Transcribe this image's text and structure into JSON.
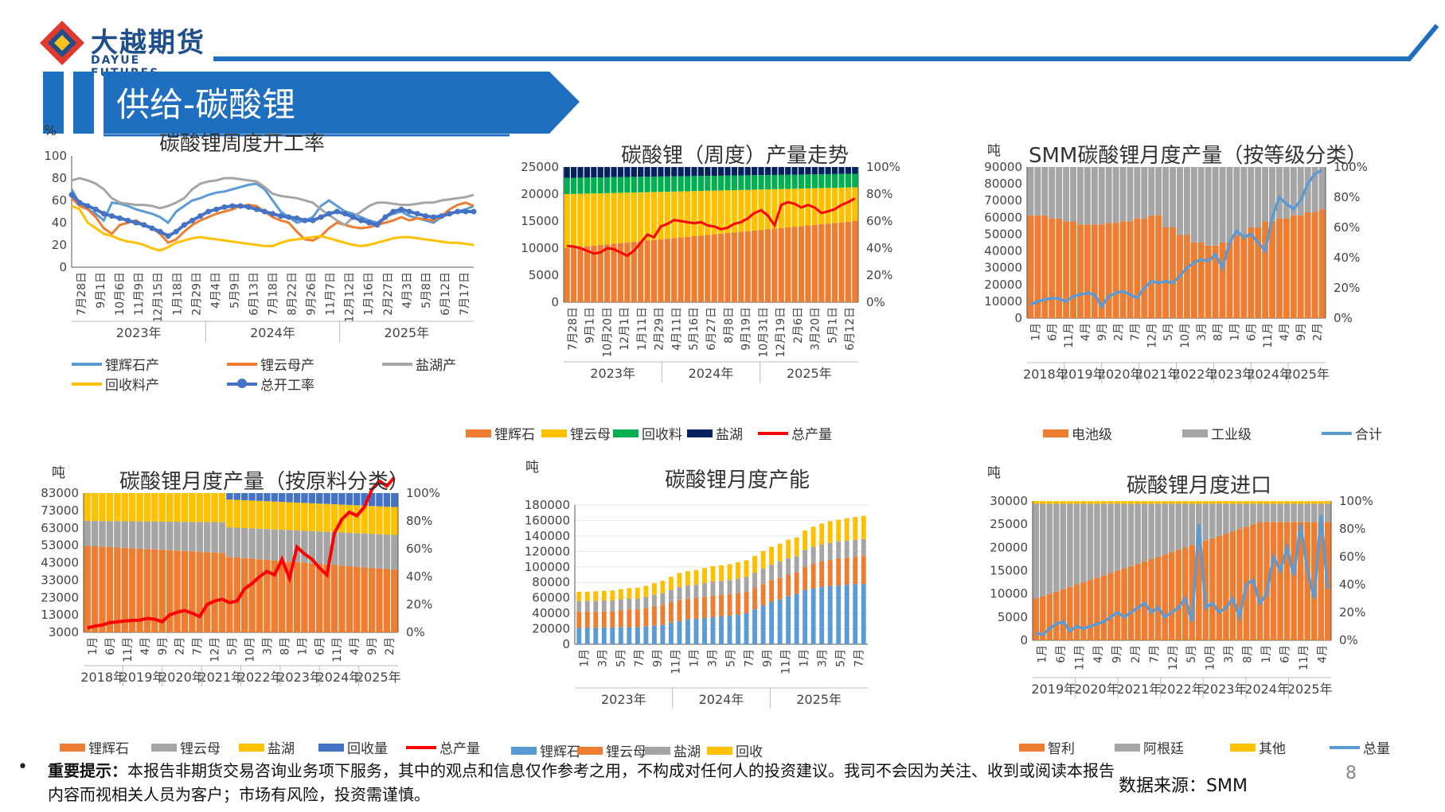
{
  "header": {
    "logo_cn": "大越期货",
    "logo_en": "DAYUE FUTURES",
    "section_title": "供给-碳酸锂",
    "brand_color": "#1f6fc0"
  },
  "footer": {
    "notice_label": "重要提示：",
    "notice_text": "本报告非期货交易咨询业务项下服务，其中的观点和信息仅作参考之用，不构成对任何人的投资建议。我司不会因为关注、收到或阅读本报告内容而视相关人员为客户；市场有风险，投资需谨慎。",
    "source": "数据来源：SMM",
    "page_number": "8"
  },
  "chart_data": [
    {
      "id": "c1",
      "type": "line",
      "title": "碳酸锂周度开工率",
      "unit": "%",
      "ylim": [
        0,
        100
      ],
      "yticks": [
        "0",
        "20",
        "40",
        "60",
        "80",
        "100"
      ],
      "tick_labels": [
        "7月28日",
        "9月1日",
        "10月6日",
        "11月9日",
        "12月15日",
        "1月18日",
        "2月29日",
        "4月4日",
        "5月9日",
        "6月13日",
        "7月18日",
        "8月22日",
        "9月26日",
        "11月7日",
        "12月12日",
        "1月16日",
        "2月27日",
        "4月3日",
        "5月8日",
        "6月12日",
        "7月17日"
      ],
      "year_labels": [
        "2023年",
        "2024年",
        "2025年"
      ],
      "series": [
        {
          "name": "锂辉石产",
          "color": "#5b9bd5",
          "values": [
            70,
            57,
            52,
            48,
            42,
            58,
            57,
            55,
            52,
            50,
            48,
            45,
            40,
            50,
            55,
            60,
            62,
            65,
            67,
            68,
            70,
            72,
            74,
            75,
            70,
            60,
            50,
            45,
            40,
            42,
            45,
            55,
            60,
            55,
            50,
            48,
            45,
            42,
            40,
            45,
            48,
            50,
            46,
            44,
            42,
            40,
            45,
            48,
            50,
            52,
            55
          ]
        },
        {
          "name": "锂云母产",
          "color": "#ed7d31",
          "values": [
            62,
            55,
            52,
            45,
            35,
            30,
            38,
            40,
            42,
            38,
            35,
            30,
            22,
            25,
            32,
            38,
            42,
            45,
            48,
            50,
            52,
            55,
            56,
            55,
            50,
            45,
            42,
            40,
            32,
            25,
            24,
            28,
            35,
            40,
            38,
            36,
            35,
            36,
            38,
            40,
            42,
            45,
            42,
            44,
            43,
            42,
            46,
            52,
            56,
            58,
            55
          ]
        },
        {
          "name": "盐湖产",
          "color": "#a5a5a5",
          "values": [
            78,
            80,
            78,
            75,
            70,
            62,
            58,
            57,
            56,
            56,
            55,
            53,
            55,
            58,
            62,
            70,
            75,
            77,
            78,
            80,
            80,
            79,
            78,
            77,
            72,
            66,
            64,
            63,
            62,
            60,
            58,
            52,
            47,
            42,
            38,
            45,
            50,
            55,
            58,
            58,
            57,
            56,
            56,
            57,
            58,
            58,
            60,
            61,
            62,
            63,
            65
          ]
        },
        {
          "name": "回收料产",
          "color": "#ffc000",
          "values": [
            55,
            52,
            40,
            35,
            30,
            28,
            25,
            23,
            22,
            20,
            17,
            15,
            18,
            22,
            24,
            26,
            27,
            26,
            25,
            24,
            23,
            22,
            21,
            20,
            19,
            19,
            22,
            24,
            25,
            26,
            27,
            28,
            26,
            24,
            22,
            20,
            19,
            20,
            22,
            24,
            26,
            27,
            27,
            26,
            25,
            24,
            23,
            22,
            22,
            21,
            20
          ]
        },
        {
          "name": "总开工率",
          "color": "#4472c4",
          "marker": true,
          "values": [
            65,
            58,
            55,
            52,
            48,
            46,
            44,
            42,
            40,
            38,
            35,
            32,
            28,
            32,
            38,
            42,
            46,
            50,
            52,
            54,
            55,
            55,
            54,
            52,
            50,
            48,
            46,
            45,
            44,
            42,
            42,
            45,
            48,
            50,
            48,
            45,
            42,
            40,
            38,
            45,
            50,
            52,
            50,
            48,
            46,
            45,
            46,
            48,
            50,
            50,
            50
          ]
        }
      ]
    },
    {
      "id": "c2",
      "type": "bar",
      "stacked": "percent",
      "title": "碳酸锂（周度）产量走势",
      "ylim": [
        0,
        25000
      ],
      "yticks": [
        "0",
        "5000",
        "10000",
        "15000",
        "20000",
        "25000"
      ],
      "y2ticks": [
        "0%",
        "20%",
        "40%",
        "60%",
        "80%",
        "100%"
      ],
      "tick_labels": [
        "7月28日",
        "9月1日",
        "10月20日",
        "12月1日",
        "1月11日",
        "2月29日",
        "4月11日",
        "5月16日",
        "6月27日",
        "8月8日",
        "9月19日",
        "10月31日",
        "12月19日",
        "2月6日",
        "3月20日",
        "5月1日",
        "6月12日"
      ],
      "year_labels": [
        "2023年",
        "2024年",
        "2025年"
      ],
      "series_names": [
        "锂辉石",
        "锂云母",
        "回收料",
        "盐湖",
        "总产量"
      ],
      "colors": [
        "#ed7d31",
        "#ffc000",
        "#00b050",
        "#002060",
        "#ff0000"
      ],
      "share_start": [
        0.4,
        0.4,
        0.12,
        0.08
      ],
      "share_end": [
        0.6,
        0.25,
        0.1,
        0.05
      ],
      "total": [
        10400,
        10300,
        10000,
        9500,
        9000,
        9200,
        10000,
        9800,
        9200,
        8600,
        9500,
        11000,
        12500,
        12000,
        14000,
        14500,
        15200,
        15000,
        14800,
        14600,
        14800,
        14200,
        14000,
        13500,
        13800,
        14500,
        14800,
        15500,
        16500,
        17000,
        16000,
        14200,
        18000,
        18500,
        18200,
        17500,
        18000,
        17500,
        16500,
        16800,
        17200,
        18000,
        18500,
        19200
      ]
    },
    {
      "id": "c3",
      "type": "bar",
      "stacked": "percent",
      "title": "SMM碳酸锂月度产量（按等级分类）",
      "unit": "吨",
      "ylim": [
        0,
        90000
      ],
      "yticks": [
        "0",
        "10000",
        "20000",
        "30000",
        "40000",
        "50000",
        "60000",
        "70000",
        "80000",
        "90000"
      ],
      "y2ticks": [
        "0%",
        "20%",
        "40%",
        "60%",
        "80%",
        "100%"
      ],
      "tick_labels": [
        "1月",
        "6月",
        "11月",
        "4月",
        "9月",
        "2月",
        "7月",
        "12月",
        "5月",
        "10月",
        "3月",
        "8月",
        "1月",
        "6月",
        "11月",
        "4月",
        "9月",
        "2月"
      ],
      "year_labels": [
        "2018年",
        "2019年",
        "2020年",
        "2021年",
        "2022年",
        "2023年",
        "2024年",
        "2025年"
      ],
      "series_names": [
        "电池级",
        "工业级",
        "合计"
      ],
      "colors": [
        "#ed7d31",
        "#a5a5a5",
        "#5b9bd5"
      ],
      "battery_share": [
        0.68,
        0.66,
        0.64,
        0.62,
        0.62,
        0.63,
        0.64,
        0.66,
        0.68,
        0.6,
        0.55,
        0.5,
        0.48,
        0.5,
        0.55,
        0.6,
        0.64,
        0.66,
        0.68,
        0.7,
        0.72
      ],
      "total": [
        8000,
        10000,
        11000,
        12000,
        11500,
        10000,
        13000,
        14000,
        15000,
        14000,
        7000,
        13000,
        15000,
        16000,
        14000,
        12000,
        18000,
        22000,
        21000,
        22000,
        21000,
        25000,
        30000,
        33000,
        35000,
        34000,
        38000,
        30000,
        45000,
        52000,
        48000,
        50000,
        45000,
        40000,
        60000,
        72000,
        68000,
        65000,
        70000,
        80000,
        86000,
        88000
      ]
    },
    {
      "id": "c4",
      "type": "bar",
      "stacked": "percent",
      "title": "碳酸锂月度产量（按原料分类）",
      "unit": "吨",
      "ylim": [
        3000,
        83000
      ],
      "yticks": [
        "3000",
        "13000",
        "23000",
        "33000",
        "43000",
        "53000",
        "63000",
        "73000",
        "83000"
      ],
      "y2ticks": [
        "0%",
        "20%",
        "40%",
        "60%",
        "80%",
        "100%"
      ],
      "tick_labels": [
        "1月",
        "6月",
        "11月",
        "4月",
        "9月",
        "2月",
        "7月",
        "12月",
        "5月",
        "10月",
        "3月",
        "8月",
        "1月",
        "6月",
        "11月",
        "4月",
        "9月",
        "2月"
      ],
      "year_labels": [
        "2018年",
        "2019年",
        "2020年",
        "2021年",
        "2022年",
        "2023年",
        "2024年",
        "2025年"
      ],
      "series_names": [
        "锂辉石",
        "锂云母",
        "盐湖",
        "回收量",
        "总产量"
      ],
      "colors": [
        "#ed7d31",
        "#a5a5a5",
        "#ffc000",
        "#4472c4",
        "#ff0000"
      ],
      "total": [
        5500,
        6500,
        7200,
        8500,
        9000,
        9500,
        9800,
        10000,
        11000,
        10500,
        9000,
        13000,
        14500,
        15500,
        14000,
        12000,
        19000,
        21000,
        22000,
        20000,
        21000,
        28000,
        31000,
        35000,
        38000,
        36000,
        45000,
        34000,
        52000,
        48000,
        45000,
        40000,
        36000,
        60000,
        68000,
        72000,
        70000,
        75000,
        85000,
        90000,
        87000,
        92000
      ]
    },
    {
      "id": "c5",
      "type": "bar",
      "stacked": true,
      "title": "碳酸锂月度产能",
      "unit": "吨",
      "ylim": [
        0,
        180000
      ],
      "yticks": [
        "0",
        "20000",
        "40000",
        "60000",
        "80000",
        "100000",
        "120000",
        "140000",
        "160000",
        "180000"
      ],
      "tick_labels": [
        "1月",
        "3月",
        "5月",
        "7月",
        "9月",
        "11月",
        "1月",
        "3月",
        "5月",
        "7月",
        "9月",
        "11月",
        "1月",
        "3月",
        "5月",
        "7月"
      ],
      "year_labels": [
        "2023年",
        "2024年",
        "2025年"
      ],
      "series": [
        {
          "name": "锂辉石",
          "color": "#5b9bd5",
          "values": [
            21000,
            21000,
            21000,
            21500,
            21500,
            22000,
            22000,
            22000,
            23000,
            24000,
            25000,
            28000,
            30000,
            32000,
            33000,
            34000,
            35000,
            36000,
            37000,
            38000,
            40000,
            45000,
            50000,
            55000,
            58000,
            62000,
            65000,
            70000,
            72000,
            74000,
            75000,
            76000,
            77000,
            78000,
            78000
          ]
        },
        {
          "name": "锂云母",
          "color": "#ed7d31",
          "values": [
            21000,
            21000,
            21000,
            21000,
            21000,
            22000,
            23000,
            23000,
            24000,
            25000,
            26000,
            26000,
            27000,
            27000,
            27000,
            27000,
            28000,
            28000,
            28000,
            28000,
            28000,
            28000,
            28000,
            28000,
            28000,
            28000,
            28000,
            30000,
            32000,
            33000,
            34000,
            35000,
            35000,
            35000,
            36000
          ]
        },
        {
          "name": "盐湖",
          "color": "#a5a5a5",
          "values": [
            14000,
            14000,
            14000,
            14000,
            14000,
            14000,
            14000,
            14000,
            14000,
            15000,
            15000,
            16000,
            17000,
            17000,
            17000,
            18000,
            18000,
            18000,
            18000,
            19000,
            19000,
            19000,
            20000,
            20000,
            21000,
            21000,
            21000,
            22000,
            22000,
            22000,
            22000,
            22000,
            22000,
            22000,
            22000
          ]
        },
        {
          "name": "回收",
          "color": "#ffc000",
          "values": [
            12000,
            12000,
            12500,
            12500,
            13000,
            13000,
            13500,
            14000,
            14500,
            15000,
            16000,
            17000,
            18000,
            18500,
            19000,
            19500,
            20000,
            20000,
            20500,
            21000,
            21500,
            22000,
            22500,
            23000,
            23000,
            24000,
            24000,
            25000,
            26000,
            27000,
            28000,
            28000,
            29000,
            29500,
            30000
          ]
        }
      ]
    },
    {
      "id": "c6",
      "type": "bar",
      "stacked": "percent",
      "title": "碳酸锂月度进口",
      "unit": "吨",
      "ylim": [
        0,
        30000
      ],
      "yticks": [
        "0",
        "5000",
        "10000",
        "15000",
        "20000",
        "25000",
        "30000"
      ],
      "y2ticks": [
        "0%",
        "20%",
        "40%",
        "60%",
        "80%",
        "100%"
      ],
      "tick_labels": [
        "1月",
        "6月",
        "11月",
        "4月",
        "9月",
        "2月",
        "7月",
        "12月",
        "5月",
        "10月",
        "3月",
        "8月",
        "1月",
        "6月",
        "11月",
        "4月"
      ],
      "year_labels": [
        "2019年",
        "2020年",
        "2021年",
        "2022年",
        "2023年",
        "2024年",
        "2025年"
      ],
      "series_names": [
        "智利",
        "阿根廷",
        "其他",
        "总量"
      ],
      "colors": [
        "#ed7d31",
        "#a5a5a5",
        "#ffc000",
        "#5b9bd5"
      ],
      "total": [
        1500,
        1200,
        2500,
        3500,
        4000,
        2000,
        3000,
        2500,
        3000,
        3500,
        4000,
        5000,
        6000,
        5000,
        6000,
        7000,
        8000,
        6000,
        7000,
        5000,
        6000,
        7000,
        9000,
        4000,
        25000,
        7000,
        8000,
        6000,
        7000,
        9000,
        5000,
        12000,
        13000,
        8000,
        10000,
        18000,
        15000,
        20000,
        14000,
        25000,
        15000,
        9000,
        27000,
        11000
      ]
    }
  ],
  "chart_text": {
    "c1_legend": [
      "锂辉石产",
      "锂云母产",
      "盐湖产",
      "回收料产",
      "总开工率"
    ]
  }
}
